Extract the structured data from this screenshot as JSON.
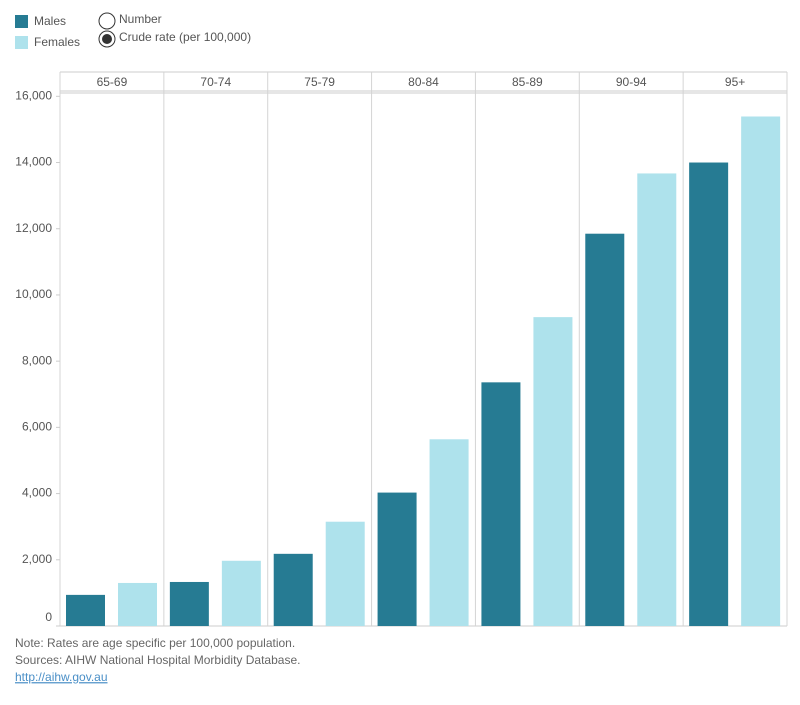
{
  "chart_data": {
    "type": "bar",
    "options": [
      "Number",
      "Crude rate (per 100,000)"
    ],
    "selected_option": 1,
    "categories": [
      "65-69",
      "70-74",
      "75-79",
      "80-84",
      "85-89",
      "90-94",
      "95+"
    ],
    "series": [
      {
        "name": "Males",
        "color": "#267b93",
        "values": [
          940,
          1330,
          2180,
          4030,
          7360,
          11850,
          14000
        ]
      },
      {
        "name": "Females",
        "color": "#aee2ec",
        "values": [
          1300,
          1970,
          3150,
          5640,
          9330,
          13670,
          15390
        ]
      }
    ],
    "ylim": [
      0,
      16100
    ],
    "yticks": [
      0,
      {
        "value": 2000,
        "label": "2,000"
      },
      {
        "value": 4000,
        "label": "4,000"
      },
      {
        "value": 6000,
        "label": "6,000"
      },
      {
        "value": 8000,
        "label": "8,000"
      },
      {
        "value": 10000,
        "label": "10,000"
      },
      {
        "value": 12000,
        "label": "12,000"
      },
      {
        "value": 14000,
        "label": "14,000"
      },
      {
        "value": 16000,
        "label": "16,000"
      }
    ],
    "notes": [
      "Note: Rates are age specific per 100,000 population.",
      "Sources: AIHW National Hospital Morbidity Database."
    ],
    "link": "http://aihw.gov.au"
  }
}
